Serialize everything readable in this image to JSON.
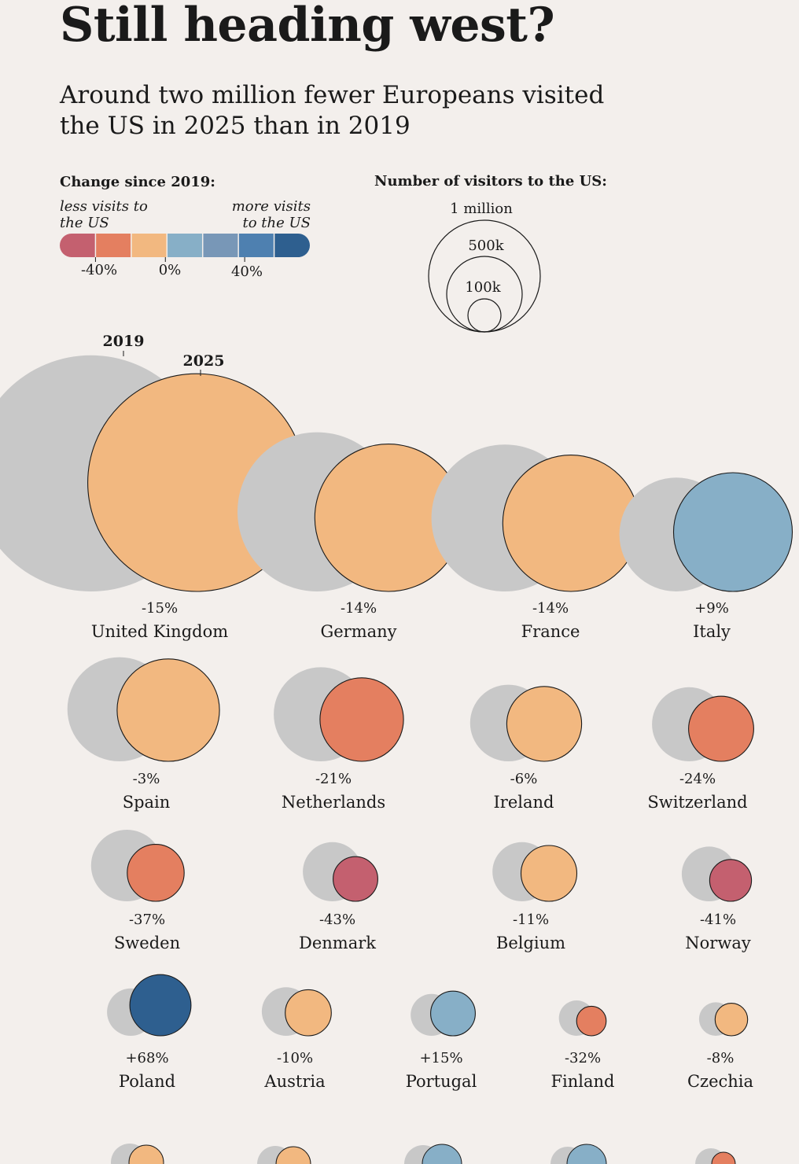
{
  "title": "Still heading west?",
  "subtitle": "Around two million fewer Europeans visited the US in 2025 than in 2019",
  "legend_color": {
    "title": "Change since 2019:",
    "left_note": [
      "less visits to",
      "the US"
    ],
    "right_note": [
      "more visits",
      "to the US"
    ],
    "ticks": [
      "-40%",
      "0%",
      "40%"
    ],
    "colors": [
      "#c4606f",
      "#e47f60",
      "#f2b880",
      "#87afc7",
      "#7897b7",
      "#4e80b0",
      "#2e5f8f"
    ]
  },
  "legend_size": {
    "title": "Number of visitors to the US:",
    "circles": [
      {
        "label": "1 million",
        "value": 1000000
      },
      {
        "label": "500k",
        "value": 500000
      },
      {
        "label": "100k",
        "value": 100000
      }
    ]
  },
  "year_labels": {
    "before": "2019",
    "after": "2025"
  },
  "chart_data": {
    "type": "bubble",
    "encoding": "circle area = number of visitors to the US; grey circle = 2019, coloured circle = 2025; colour = change since 2019",
    "items": [
      {
        "country": "United Kingdom",
        "change": "-15%",
        "v2019": 4470000,
        "v2025": 3800000,
        "color": "#f2b880"
      },
      {
        "country": "Germany",
        "change": "-14%",
        "v2019": 2030000,
        "v2025": 1740000,
        "color": "#f2b880"
      },
      {
        "country": "France",
        "change": "-14%",
        "v2019": 1730000,
        "v2025": 1490000,
        "color": "#f2b880"
      },
      {
        "country": "Italy",
        "change": "+9%",
        "v2019": 1040000,
        "v2025": 1130000,
        "color": "#87afc7"
      },
      {
        "country": "Spain",
        "change": "-3%",
        "v2019": 870000,
        "v2025": 840000,
        "color": "#f2b880"
      },
      {
        "country": "Netherlands",
        "change": "-21%",
        "v2019": 710000,
        "v2025": 560000,
        "color": "#e47f60"
      },
      {
        "country": "Ireland",
        "change": "-6%",
        "v2019": 470000,
        "v2025": 450000,
        "color": "#f2b880"
      },
      {
        "country": "Switzerland",
        "change": "-24%",
        "v2019": 440000,
        "v2025": 340000,
        "color": "#e47f60"
      },
      {
        "country": "Sweden",
        "change": "-37%",
        "v2019": 410000,
        "v2025": 260000,
        "color": "#e47f60"
      },
      {
        "country": "Denmark",
        "change": "-43%",
        "v2019": 280000,
        "v2025": 160000,
        "color": "#c4606f"
      },
      {
        "country": "Belgium",
        "change": "-11%",
        "v2019": 280000,
        "v2025": 250000,
        "color": "#f2b880"
      },
      {
        "country": "Norway",
        "change": "-41%",
        "v2019": 240000,
        "v2025": 140000,
        "color": "#c4606f"
      },
      {
        "country": "Poland",
        "change": "+68%",
        "v2019": 180000,
        "v2025": 300000,
        "color": "#2e5f8f"
      },
      {
        "country": "Austria",
        "change": "-10%",
        "v2019": 190000,
        "v2025": 170000,
        "color": "#f2b880"
      },
      {
        "country": "Portugal",
        "change": "+15%",
        "v2019": 140000,
        "v2025": 160000,
        "color": "#87afc7"
      },
      {
        "country": "Finland",
        "change": "-32%",
        "v2019": 100000,
        "v2025": 70000,
        "color": "#e47f60"
      },
      {
        "country": "Czechia",
        "change": "-8%",
        "v2019": 90000,
        "v2025": 85000,
        "color": "#f2b880"
      }
    ]
  }
}
